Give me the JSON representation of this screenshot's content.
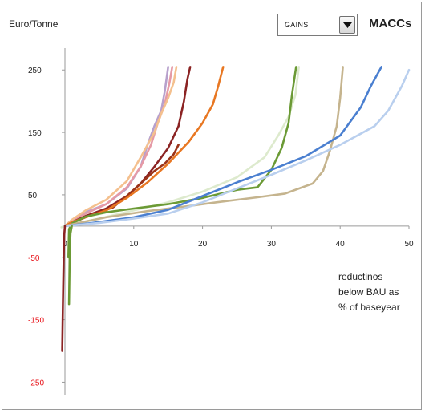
{
  "header": {
    "dropdown_value": "GAINS",
    "dropdown_icon": "chevron-down-icon"
  },
  "chart_data": {
    "type": "line",
    "title": "MACCs",
    "ylabel": "Euro/Tonne",
    "xlabel": "reductinos below BAU as % of baseyear",
    "xlabel_lines": [
      "reductinos",
      "below BAU as",
      "% of baseyear"
    ],
    "xlim": [
      0,
      50
    ],
    "ylim": [
      -270,
      285
    ],
    "xticks": [
      0,
      10,
      20,
      30,
      40,
      50
    ],
    "yticks": [
      250,
      150,
      50,
      -50,
      -150,
      -250
    ],
    "negative_tick_color": "#e8141b",
    "grid": false,
    "legend": "none",
    "series": [
      {
        "color": "#b7a0cc",
        "points": [
          [
            0,
            0
          ],
          [
            1,
            10
          ],
          [
            3,
            22
          ],
          [
            6,
            35
          ],
          [
            9,
            60
          ],
          [
            11,
            95
          ],
          [
            12,
            130
          ],
          [
            13,
            160
          ],
          [
            14,
            185
          ],
          [
            14.5,
            215
          ],
          [
            15,
            255
          ]
        ]
      },
      {
        "color": "#e59aa6",
        "points": [
          [
            0,
            0
          ],
          [
            1,
            8
          ],
          [
            3,
            20
          ],
          [
            6,
            35
          ],
          [
            9,
            62
          ],
          [
            11,
            95
          ],
          [
            12.5,
            130
          ],
          [
            13.5,
            165
          ],
          [
            14.5,
            195
          ],
          [
            15.2,
            230
          ],
          [
            15.6,
            255
          ]
        ]
      },
      {
        "color": "#f4c08e",
        "points": [
          [
            0,
            0
          ],
          [
            1,
            10
          ],
          [
            3,
            25
          ],
          [
            6,
            42
          ],
          [
            9,
            72
          ],
          [
            11,
            110
          ],
          [
            13,
            150
          ],
          [
            14,
            180
          ],
          [
            15,
            205
          ],
          [
            15.8,
            230
          ],
          [
            16.2,
            255
          ]
        ]
      },
      {
        "color": "#8b2323",
        "points": [
          [
            0,
            0
          ],
          [
            1,
            6
          ],
          [
            3,
            16
          ],
          [
            6,
            28
          ],
          [
            9,
            48
          ],
          [
            11,
            68
          ],
          [
            13,
            95
          ],
          [
            15,
            125
          ],
          [
            16.5,
            160
          ],
          [
            17.3,
            200
          ],
          [
            17.8,
            235
          ],
          [
            18.2,
            255
          ]
        ]
      },
      {
        "color": "#9b3318",
        "points": [
          [
            0,
            0
          ],
          [
            1,
            5
          ],
          [
            3,
            14
          ],
          [
            5,
            22
          ],
          [
            7,
            30
          ],
          [
            9,
            48
          ],
          [
            11,
            68
          ],
          [
            13,
            88
          ],
          [
            14.5,
            100
          ],
          [
            15.8,
            115
          ],
          [
            16.5,
            130
          ]
        ]
      },
      {
        "color": "#e87722",
        "points": [
          [
            0,
            0
          ],
          [
            1,
            6
          ],
          [
            3,
            14
          ],
          [
            6,
            25
          ],
          [
            9,
            45
          ],
          [
            12,
            70
          ],
          [
            15,
            100
          ],
          [
            18,
            135
          ],
          [
            20,
            165
          ],
          [
            21.5,
            195
          ],
          [
            22.3,
            225
          ],
          [
            23,
            255
          ]
        ]
      },
      {
        "color": "#ddeacd",
        "points": [
          [
            -0.5,
            -2
          ],
          [
            0,
            0
          ],
          [
            2,
            5
          ],
          [
            5,
            12
          ],
          [
            10,
            25
          ],
          [
            15,
            38
          ],
          [
            20,
            55
          ],
          [
            25,
            78
          ],
          [
            29,
            110
          ],
          [
            31,
            145
          ],
          [
            32.5,
            175
          ],
          [
            33.5,
            210
          ],
          [
            34,
            255
          ]
        ]
      },
      {
        "color": "#6b9a35",
        "points": [
          [
            0.5,
            -50
          ],
          [
            0.6,
            -5
          ],
          [
            1,
            4
          ],
          [
            3,
            15
          ],
          [
            6,
            22
          ],
          [
            10,
            28
          ],
          [
            15,
            35
          ],
          [
            20,
            45
          ],
          [
            25,
            58
          ],
          [
            28,
            62
          ],
          [
            30,
            90
          ],
          [
            31.5,
            125
          ],
          [
            32.5,
            165
          ],
          [
            33,
            210
          ],
          [
            33.6,
            255
          ]
        ]
      },
      {
        "color": "#c5b48e",
        "points": [
          [
            0,
            0
          ],
          [
            2,
            5
          ],
          [
            6,
            14
          ],
          [
            12,
            24
          ],
          [
            18,
            32
          ],
          [
            22,
            38
          ],
          [
            28,
            46
          ],
          [
            32,
            52
          ],
          [
            34,
            60
          ],
          [
            36,
            68
          ],
          [
            37.5,
            88
          ],
          [
            38.5,
            120
          ],
          [
            39.5,
            160
          ],
          [
            40,
            205
          ],
          [
            40.4,
            255
          ]
        ]
      },
      {
        "color": "#4a7fd0",
        "points": [
          [
            0,
            0
          ],
          [
            4,
            5
          ],
          [
            10,
            14
          ],
          [
            15,
            26
          ],
          [
            20,
            48
          ],
          [
            25,
            70
          ],
          [
            30,
            90
          ],
          [
            35,
            112
          ],
          [
            40,
            145
          ],
          [
            43,
            190
          ],
          [
            44.5,
            225
          ],
          [
            46,
            255
          ]
        ]
      },
      {
        "color": "#b9cfee",
        "points": [
          [
            0,
            0
          ],
          [
            5,
            5
          ],
          [
            10,
            12
          ],
          [
            15,
            20
          ],
          [
            20,
            38
          ],
          [
            25,
            60
          ],
          [
            30,
            82
          ],
          [
            35,
            105
          ],
          [
            40,
            130
          ],
          [
            45,
            160
          ],
          [
            47,
            185
          ],
          [
            49,
            225
          ],
          [
            50,
            250
          ]
        ]
      },
      {
        "color": "#8b2323",
        "points": [
          [
            -0.4,
            -200
          ],
          [
            -0.3,
            -130
          ],
          [
            -0.2,
            -60
          ],
          [
            -0.1,
            -15
          ],
          [
            0,
            0
          ]
        ]
      },
      {
        "color": "#6b9a35",
        "points": [
          [
            0.6,
            -125
          ],
          [
            0.65,
            -80
          ],
          [
            0.7,
            -40
          ],
          [
            0.8,
            -12
          ],
          [
            1,
            0
          ]
        ]
      }
    ]
  }
}
